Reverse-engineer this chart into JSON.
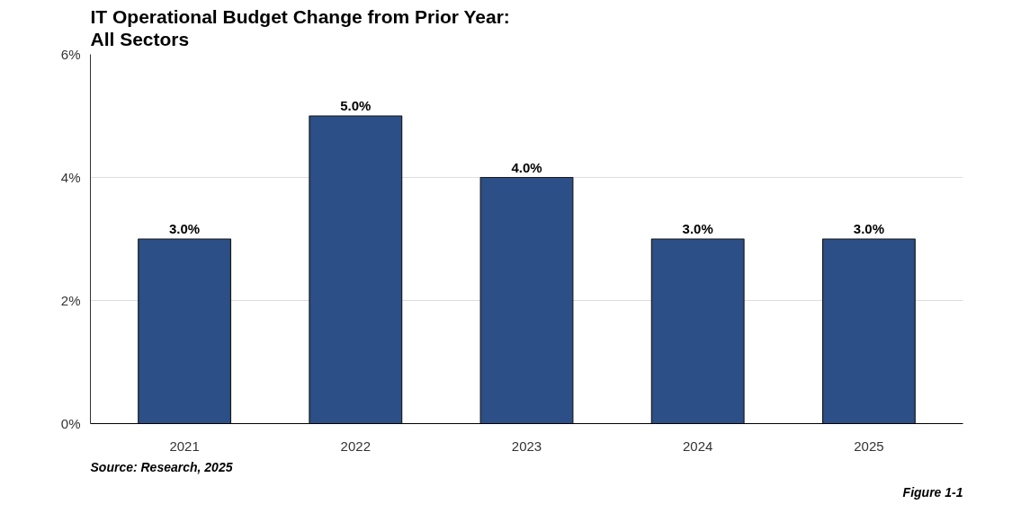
{
  "chart_data": {
    "type": "bar",
    "title": "IT Operational Budget Change from Prior Year:\nAll Sectors",
    "categories": [
      "2021",
      "2022",
      "2023",
      "2024",
      "2025"
    ],
    "values": [
      3.0,
      5.0,
      4.0,
      3.0,
      3.0
    ],
    "value_labels": [
      "3.0%",
      "5.0%",
      "4.0%",
      "3.0%",
      "3.0%"
    ],
    "color": "#2b4f86",
    "ylim": [
      0,
      6
    ],
    "yticks": [
      {
        "value": 0,
        "label": "0%"
      },
      {
        "value": 2,
        "label": "2%"
      },
      {
        "value": 4,
        "label": "4%"
      },
      {
        "value": 6,
        "label": "6%"
      }
    ],
    "grid": "y",
    "annotations": [
      "Source: Research, 2025",
      "Figure 1-1"
    ]
  }
}
